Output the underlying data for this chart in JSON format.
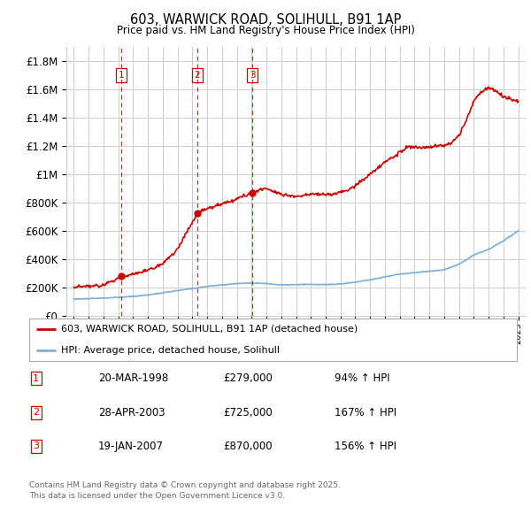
{
  "title": "603, WARWICK ROAD, SOLIHULL, B91 1AP",
  "subtitle": "Price paid vs. HM Land Registry's House Price Index (HPI)",
  "legend_line1": "603, WARWICK ROAD, SOLIHULL, B91 1AP (detached house)",
  "legend_line2": "HPI: Average price, detached house, Solihull",
  "footer1": "Contains HM Land Registry data © Crown copyright and database right 2025.",
  "footer2": "This data is licensed under the Open Government Licence v3.0.",
  "transactions": [
    {
      "num": 1,
      "date": "20-MAR-1998",
      "price": "£279,000",
      "hpi": "94% ↑ HPI",
      "year": 1998.22
    },
    {
      "num": 2,
      "date": "28-APR-2003",
      "price": "£725,000",
      "hpi": "167% ↑ HPI",
      "year": 2003.33
    },
    {
      "num": 3,
      "date": "19-JAN-2007",
      "price": "£870,000",
      "hpi": "156% ↑ HPI",
      "year": 2007.05
    }
  ],
  "transaction_prices": [
    279000,
    725000,
    870000
  ],
  "red_line_color": "#cc0000",
  "blue_line_color": "#7bafd4",
  "dashed_line_color": "#cc0000",
  "background_color": "#ffffff",
  "grid_color": "#cccccc",
  "ylim": [
    0,
    1900000
  ],
  "xlim": [
    1994.5,
    2025.5
  ],
  "yticks": [
    0,
    200000,
    400000,
    600000,
    800000,
    1000000,
    1200000,
    1400000,
    1600000,
    1800000
  ],
  "ytick_labels": [
    "£0",
    "£200K",
    "£400K",
    "£600K",
    "£800K",
    "£1M",
    "£1.2M",
    "£1.4M",
    "£1.6M",
    "£1.8M"
  ]
}
